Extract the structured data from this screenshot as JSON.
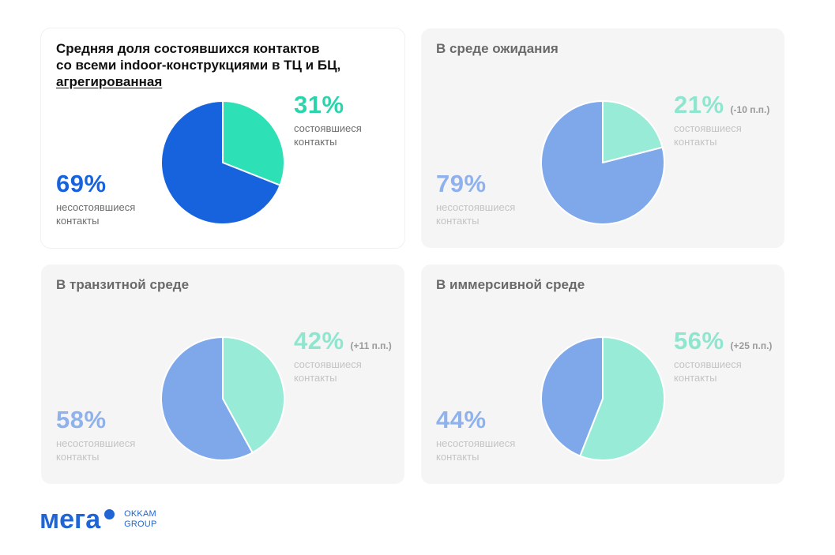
{
  "chart_data": [
    {
      "type": "pie",
      "title_lines": [
        "Средняя доля состоявшихся контактов",
        "со всеми indoor-конструкциями в ТЦ и БЦ,",
        "агрегированная"
      ],
      "slices": [
        {
          "label_lines": [
            "состоявшиеся",
            "контакты"
          ],
          "value": 31,
          "display": "31%",
          "delta": "",
          "color": "#2ee0b5"
        },
        {
          "label_lines": [
            "несостоявшиеся",
            "контакты"
          ],
          "value": 69,
          "display": "69%",
          "delta": "",
          "color": "#1763de"
        }
      ],
      "pct_colors": {
        "success": "#2bd4ab",
        "fail": "#1763de"
      }
    },
    {
      "type": "pie",
      "title_lines": [
        "В среде ожидания"
      ],
      "slices": [
        {
          "label_lines": [
            "состоявшиеся",
            "контакты"
          ],
          "value": 21,
          "display": "21%",
          "delta": "(-10 п.п.)",
          "color": "#98ebd6"
        },
        {
          "label_lines": [
            "несостоявшиеся",
            "контакты"
          ],
          "value": 79,
          "display": "79%",
          "delta": "",
          "color": "#7ea8ea"
        }
      ],
      "pct_colors": {
        "success": "#8fe6cf",
        "fail": "#8fb1ec"
      }
    },
    {
      "type": "pie",
      "title_lines": [
        "В транзитной среде"
      ],
      "slices": [
        {
          "label_lines": [
            "состоявшиеся",
            "контакты"
          ],
          "value": 42,
          "display": "42%",
          "delta": "(+11 п.п.)",
          "color": "#98ebd6"
        },
        {
          "label_lines": [
            "несостоявшиеся",
            "контакты"
          ],
          "value": 58,
          "display": "58%",
          "delta": "",
          "color": "#7ea8ea"
        }
      ],
      "pct_colors": {
        "success": "#8fe6cf",
        "fail": "#8fb1ec"
      }
    },
    {
      "type": "pie",
      "title_lines": [
        "В иммерсивной среде"
      ],
      "slices": [
        {
          "label_lines": [
            "состоявшиеся",
            "контакты"
          ],
          "value": 56,
          "display": "56%",
          "delta": "(+25 п.п.)",
          "color": "#98ebd6"
        },
        {
          "label_lines": [
            "несостоявшиеся",
            "контакты"
          ],
          "value": 44,
          "display": "44%",
          "delta": "",
          "color": "#7ea8ea"
        }
      ],
      "pct_colors": {
        "success": "#8fe6cf",
        "fail": "#8fb1ec"
      }
    }
  ],
  "logo": {
    "mark": "мега",
    "sub_lines": [
      "OKKAM",
      "GROUP"
    ],
    "color": "#1f65d6"
  }
}
